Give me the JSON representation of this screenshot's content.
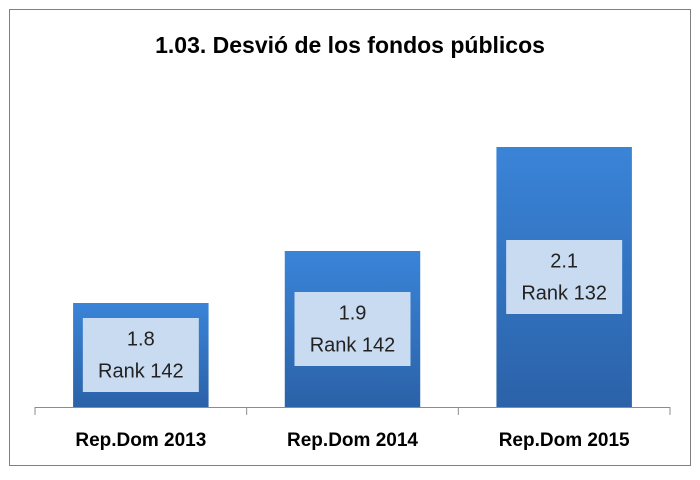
{
  "chart_data": {
    "type": "bar",
    "title": "1.03. Desvió de los fondos públicos",
    "categories": [
      "Rep.Dom 2013",
      "Rep.Dom 2014",
      "Rep.Dom 2015"
    ],
    "values": [
      1.8,
      1.9,
      2.1
    ],
    "ranks": [
      "Rank 142",
      "Rank 142",
      "Rank 132"
    ],
    "color": "#3478cc",
    "ylim": [
      1.6,
      2.2
    ]
  }
}
